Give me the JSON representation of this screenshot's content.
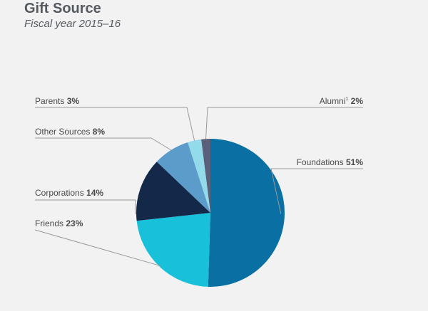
{
  "header": {
    "title": "Gift Source",
    "subtitle": "Fiscal year 2015–16"
  },
  "chart_data": {
    "type": "pie",
    "title": "Gift Source",
    "subtitle": "Fiscal year 2015–16",
    "slices": [
      {
        "label": "Foundations",
        "value": 51,
        "display": "51%",
        "color": "#0a6fa3"
      },
      {
        "label": "Friends",
        "value": 23,
        "display": "23%",
        "color": "#18c0da"
      },
      {
        "label": "Corporations",
        "value": 14,
        "display": "14%",
        "color": "#142849"
      },
      {
        "label": "Other Sources",
        "value": 8,
        "display": "8%",
        "color": "#5b9ccb"
      },
      {
        "label": "Parents",
        "value": 3,
        "display": "3%",
        "color": "#93dbea"
      },
      {
        "label": "Alumni",
        "label_superscript": "1",
        "value": 2,
        "display": "2%",
        "color": "#5a5f7a"
      }
    ]
  }
}
